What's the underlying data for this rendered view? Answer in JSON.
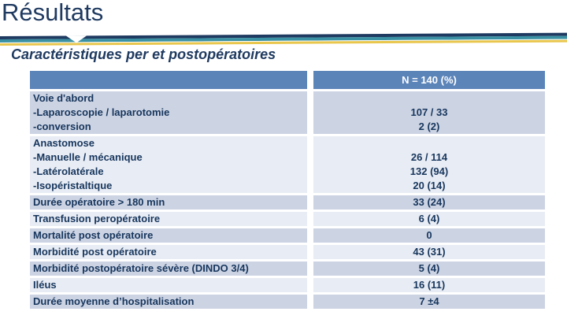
{
  "slide": {
    "title": "Résultats",
    "subtitle": "Caractéristiques per et postopératoires"
  },
  "table": {
    "header": {
      "label": "",
      "value": "N = 140 (%)"
    },
    "rows": [
      {
        "shade": "dark",
        "lines": [
          "Voie d'abord",
          "-Laparoscopie / laparotomie",
          "-conversion"
        ],
        "values": [
          "",
          "107 / 33",
          "2 (2)"
        ]
      },
      {
        "shade": "light",
        "lines": [
          "Anastomose",
          "-Manuelle / mécanique",
          "-Latérolatérale",
          "-Isopéristaltique"
        ],
        "values": [
          "",
          "26 / 114",
          "132 (94)",
          "20 (14)"
        ]
      },
      {
        "shade": "dark",
        "lines": [
          "Durée opératoire > 180 min"
        ],
        "values": [
          "33 (24)"
        ]
      },
      {
        "shade": "light",
        "lines": [
          "Transfusion peropératoire"
        ],
        "values": [
          "6 (4)"
        ]
      },
      {
        "shade": "dark",
        "lines": [
          "Mortalité post opératoire"
        ],
        "values": [
          "0"
        ]
      },
      {
        "shade": "light",
        "lines": [
          "Morbidité post opératoire"
        ],
        "values": [
          "43 (31)"
        ]
      },
      {
        "shade": "dark",
        "lines": [
          "Morbidité postopératoire sévère (DINDO 3/4)"
        ],
        "values": [
          "5 (4)"
        ]
      },
      {
        "shade": "light",
        "lines": [
          "Iléus"
        ],
        "values": [
          "16 (11)"
        ]
      },
      {
        "shade": "dark",
        "lines": [
          "Durée moyenne d’hospitalisation"
        ],
        "values": [
          "7 ±4"
        ]
      }
    ]
  },
  "colors": {
    "navy": "#1f3a60",
    "teal": "#3b91a4",
    "gold": "#e9c64c",
    "header_bg": "#5b84b9",
    "row_dark": "#ccd3e3",
    "row_light": "#e8ecf4",
    "table_text": "#17365d"
  }
}
